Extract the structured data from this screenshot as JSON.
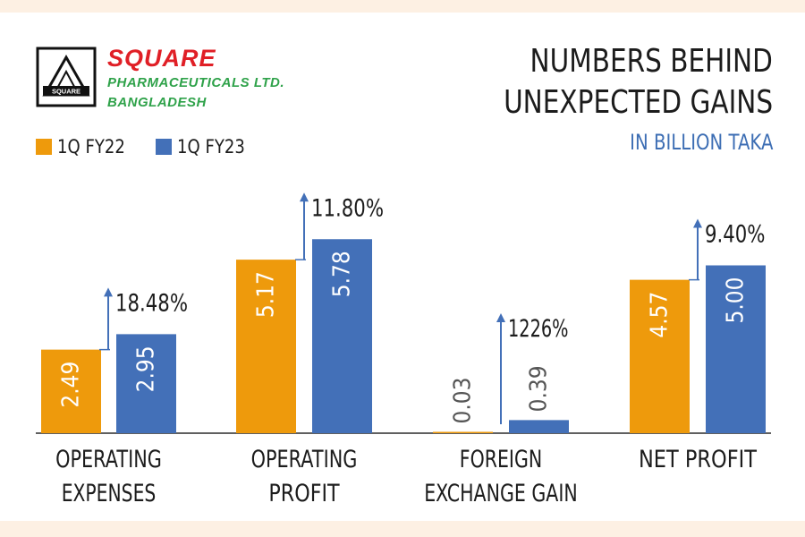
{
  "brand": {
    "name": "SQUARE",
    "line1": "PHARMACEUTICALS LTD.",
    "line2": "BANGLADESH",
    "logo_text": "SQUARE"
  },
  "title_lines": [
    "NUMBERS BEHIND",
    "UNEXPECTED GAINS"
  ],
  "subtitle": "IN BILLION TAKA",
  "colors": {
    "fy22": "#ee9a0c",
    "fy23": "#4370b8",
    "arrow": "#4370b8",
    "baseline": "#2b2b2b"
  },
  "chart_data": {
    "type": "bar",
    "categories": [
      [
        "OPERATING",
        "EXPENSES"
      ],
      [
        "OPERATING",
        "PROFIT"
      ],
      [
        "FOREIGN",
        "EXCHANGE GAIN"
      ],
      [
        "NET PROFIT"
      ]
    ],
    "series": [
      {
        "name": "1Q FY22",
        "values": [
          2.49,
          5.17,
          0.03,
          4.57
        ],
        "labels": [
          "2.49",
          "5.17",
          "0.03",
          "4.57"
        ]
      },
      {
        "name": "1Q FY23",
        "values": [
          2.95,
          5.78,
          0.39,
          5.0
        ],
        "labels": [
          "2.95",
          "5.78",
          "0.39",
          "5.00"
        ]
      }
    ],
    "changes": [
      "18.48%",
      "11.80%",
      "1226%",
      "9.40%"
    ],
    "legend": "top-left",
    "grid": false
  }
}
